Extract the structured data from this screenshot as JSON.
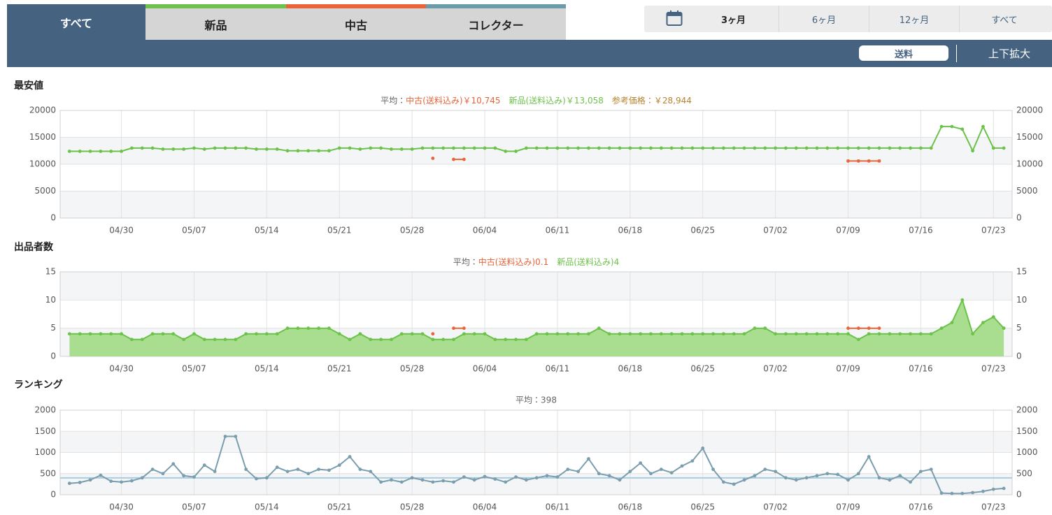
{
  "tabs": [
    "すべて",
    "新品",
    "中古",
    "コレクター"
  ],
  "ranges": [
    "3ヶ月",
    "6ヶ月",
    "12ヶ月",
    "すべて"
  ],
  "toolbar": {
    "shipping": "送料",
    "zoom": "上下拡大"
  },
  "chart_data": [
    {
      "type": "line",
      "title": "最安値",
      "subtitle_parts": [
        {
          "text": "平均：",
          "color": "#666666"
        },
        {
          "text": "中古(送料込み)￥10,745",
          "color": "#e8643a"
        },
        {
          "text": "新品(送料込み)￥13,058",
          "color": "#6cc24a"
        },
        {
          "text": "参考価格：￥28,944",
          "color": "#b5832e"
        }
      ],
      "xlim": [
        0.1,
        91.8
      ],
      "xticks": [
        {
          "value": 6,
          "label": "04/30"
        },
        {
          "value": 13,
          "label": "05/07"
        },
        {
          "value": 20,
          "label": "05/14"
        },
        {
          "value": 27,
          "label": "05/21"
        },
        {
          "value": 34,
          "label": "05/28"
        },
        {
          "value": 41,
          "label": "06/04"
        },
        {
          "value": 48,
          "label": "06/11"
        },
        {
          "value": 55,
          "label": "06/18"
        },
        {
          "value": 62,
          "label": "06/25"
        },
        {
          "value": 69,
          "label": "07/02"
        },
        {
          "value": 76,
          "label": "07/09"
        },
        {
          "value": 83,
          "label": "07/16"
        },
        {
          "value": 90,
          "label": "07/23"
        }
      ],
      "ylim": [
        0,
        20000
      ],
      "yticks": [
        0,
        5000,
        10000,
        15000,
        20000
      ],
      "grid": true,
      "x": [
        1,
        2,
        3,
        4,
        5,
        6,
        7,
        8,
        9,
        10,
        11,
        12,
        13,
        14,
        15,
        16,
        17,
        18,
        19,
        20,
        21,
        22,
        23,
        24,
        25,
        26,
        27,
        28,
        29,
        30,
        31,
        32,
        33,
        34,
        35,
        36,
        37,
        38,
        39,
        40,
        41,
        42,
        43,
        44,
        45,
        46,
        47,
        48,
        49,
        50,
        51,
        52,
        53,
        54,
        55,
        56,
        57,
        58,
        59,
        60,
        61,
        62,
        63,
        64,
        65,
        66,
        67,
        68,
        69,
        70,
        71,
        72,
        73,
        74,
        75,
        76,
        77,
        78,
        79,
        80,
        81,
        82,
        83,
        84,
        85,
        86,
        87,
        88,
        89,
        90,
        91
      ],
      "series": [
        {
          "name": "新品",
          "color": "#6cc24a",
          "values": [
            12400,
            12400,
            12400,
            12400,
            12400,
            12400,
            13000,
            13000,
            13000,
            12800,
            12800,
            12800,
            13000,
            12800,
            13000,
            13000,
            13000,
            13000,
            12800,
            12800,
            12800,
            12500,
            12500,
            12500,
            12500,
            12500,
            13000,
            13000,
            12800,
            13000,
            13000,
            12800,
            12800,
            12800,
            13000,
            13000,
            13000,
            13000,
            13000,
            13000,
            13000,
            13000,
            12400,
            12400,
            13000,
            13000,
            13000,
            13000,
            13000,
            13000,
            13000,
            13000,
            13000,
            13000,
            13000,
            13000,
            13000,
            13000,
            13000,
            13000,
            13000,
            13000,
            13000,
            13000,
            13000,
            13000,
            13000,
            13000,
            13000,
            13000,
            13000,
            13000,
            13000,
            13000,
            13000,
            13000,
            13000,
            13000,
            13000,
            13000,
            13000,
            13000,
            13000,
            13000,
            17000,
            17000,
            16500,
            12500,
            17000,
            13000,
            13000
          ]
        },
        {
          "name": "中古",
          "color": "#e8643a",
          "values": [
            null,
            null,
            null,
            null,
            null,
            null,
            null,
            null,
            null,
            null,
            null,
            null,
            null,
            null,
            null,
            null,
            null,
            null,
            null,
            null,
            null,
            null,
            null,
            null,
            null,
            null,
            null,
            null,
            null,
            null,
            null,
            null,
            null,
            null,
            null,
            11100,
            null,
            10900,
            10900,
            null,
            null,
            null,
            null,
            null,
            null,
            null,
            null,
            null,
            null,
            null,
            null,
            null,
            null,
            null,
            null,
            null,
            null,
            null,
            null,
            null,
            null,
            null,
            null,
            null,
            null,
            null,
            null,
            null,
            null,
            null,
            null,
            null,
            null,
            null,
            null,
            10600,
            10600,
            10600,
            10600,
            null,
            null,
            null,
            null,
            null,
            null,
            null,
            null,
            null,
            null,
            null,
            null
          ]
        }
      ]
    },
    {
      "type": "line",
      "title": "出品者数",
      "subtitle_parts": [
        {
          "text": "平均：",
          "color": "#666666"
        },
        {
          "text": "中古(送料込み)0.1",
          "color": "#e8643a"
        },
        {
          "text": "新品(送料込み)4",
          "color": "#6cc24a"
        }
      ],
      "xlim": [
        0.1,
        91.8
      ],
      "xticks": [
        {
          "value": 6,
          "label": "04/30"
        },
        {
          "value": 13,
          "label": "05/07"
        },
        {
          "value": 20,
          "label": "05/14"
        },
        {
          "value": 27,
          "label": "05/21"
        },
        {
          "value": 34,
          "label": "05/28"
        },
        {
          "value": 41,
          "label": "06/04"
        },
        {
          "value": 48,
          "label": "06/11"
        },
        {
          "value": 55,
          "label": "06/18"
        },
        {
          "value": 62,
          "label": "06/25"
        },
        {
          "value": 69,
          "label": "07/02"
        },
        {
          "value": 76,
          "label": "07/09"
        },
        {
          "value": 83,
          "label": "07/16"
        },
        {
          "value": 90,
          "label": "07/23"
        }
      ],
      "ylim": [
        0,
        15
      ],
      "yticks": [
        0,
        5,
        10,
        15
      ],
      "grid": true,
      "x": [
        1,
        2,
        3,
        4,
        5,
        6,
        7,
        8,
        9,
        10,
        11,
        12,
        13,
        14,
        15,
        16,
        17,
        18,
        19,
        20,
        21,
        22,
        23,
        24,
        25,
        26,
        27,
        28,
        29,
        30,
        31,
        32,
        33,
        34,
        35,
        36,
        37,
        38,
        39,
        40,
        41,
        42,
        43,
        44,
        45,
        46,
        47,
        48,
        49,
        50,
        51,
        52,
        53,
        54,
        55,
        56,
        57,
        58,
        59,
        60,
        61,
        62,
        63,
        64,
        65,
        66,
        67,
        68,
        69,
        70,
        71,
        72,
        73,
        74,
        75,
        76,
        77,
        78,
        79,
        80,
        81,
        82,
        83,
        84,
        85,
        86,
        87,
        88,
        89,
        90,
        91
      ],
      "series": [
        {
          "name": "新品",
          "color": "#6cc24a",
          "fill": "#a9dd8f",
          "values": [
            4,
            4,
            4,
            4,
            4,
            4,
            3,
            3,
            4,
            4,
            4,
            3,
            4,
            3,
            3,
            3,
            3,
            4,
            4,
            4,
            4,
            5,
            5,
            5,
            5,
            5,
            4,
            3,
            4,
            3,
            3,
            3,
            4,
            4,
            4,
            3,
            3,
            3,
            4,
            4,
            4,
            3,
            3,
            3,
            3,
            4,
            4,
            4,
            4,
            4,
            4,
            5,
            4,
            4,
            4,
            4,
            4,
            4,
            4,
            4,
            4,
            4,
            4,
            4,
            4,
            4,
            5,
            5,
            4,
            4,
            4,
            4,
            4,
            4,
            4,
            4,
            3,
            4,
            4,
            4,
            4,
            4,
            4,
            4,
            5,
            6,
            10,
            4,
            6,
            7,
            5
          ]
        },
        {
          "name": "中古",
          "color": "#e8643a",
          "values": [
            null,
            null,
            null,
            null,
            null,
            null,
            null,
            null,
            null,
            null,
            null,
            null,
            null,
            null,
            null,
            null,
            null,
            null,
            null,
            null,
            null,
            null,
            null,
            null,
            null,
            null,
            null,
            null,
            null,
            null,
            null,
            null,
            null,
            null,
            null,
            4,
            null,
            5,
            5,
            null,
            null,
            null,
            null,
            null,
            null,
            null,
            null,
            null,
            null,
            null,
            null,
            null,
            null,
            null,
            null,
            null,
            null,
            null,
            null,
            null,
            null,
            null,
            null,
            null,
            null,
            null,
            null,
            null,
            null,
            null,
            null,
            null,
            null,
            null,
            null,
            5,
            5,
            5,
            5,
            null,
            null,
            null,
            null,
            null,
            null,
            null,
            null,
            null,
            null,
            null,
            null
          ]
        }
      ]
    },
    {
      "type": "line",
      "title": "ランキング",
      "average": {
        "value": 398,
        "label": "平均：398",
        "color": "#a9cde0"
      },
      "xlim": [
        0.1,
        91.8
      ],
      "xticks": [
        {
          "value": 6,
          "label": "04/30"
        },
        {
          "value": 13,
          "label": "05/07"
        },
        {
          "value": 20,
          "label": "05/14"
        },
        {
          "value": 27,
          "label": "05/21"
        },
        {
          "value": 34,
          "label": "05/28"
        },
        {
          "value": 41,
          "label": "06/04"
        },
        {
          "value": 48,
          "label": "06/11"
        },
        {
          "value": 55,
          "label": "06/18"
        },
        {
          "value": 62,
          "label": "06/25"
        },
        {
          "value": 69,
          "label": "07/02"
        },
        {
          "value": 76,
          "label": "07/09"
        },
        {
          "value": 83,
          "label": "07/16"
        },
        {
          "value": 90,
          "label": "07/23"
        }
      ],
      "ylim": [
        0,
        2000
      ],
      "yticks": [
        0,
        500,
        1000,
        1500,
        2000
      ],
      "grid": true,
      "x": [
        1,
        2,
        3,
        4,
        5,
        6,
        7,
        8,
        9,
        10,
        11,
        12,
        13,
        14,
        15,
        16,
        17,
        18,
        19,
        20,
        21,
        22,
        23,
        24,
        25,
        26,
        27,
        28,
        29,
        30,
        31,
        32,
        33,
        34,
        35,
        36,
        37,
        38,
        39,
        40,
        41,
        42,
        43,
        44,
        45,
        46,
        47,
        48,
        49,
        50,
        51,
        52,
        53,
        54,
        55,
        56,
        57,
        58,
        59,
        60,
        61,
        62,
        63,
        64,
        65,
        66,
        67,
        68,
        69,
        70,
        71,
        72,
        73,
        74,
        75,
        76,
        77,
        78,
        79,
        80,
        81,
        82,
        83,
        84,
        85,
        86,
        87,
        88,
        89,
        90,
        91
      ],
      "series": [
        {
          "name": "ランキング",
          "color": "#7a9eae",
          "values": [
            270,
            290,
            350,
            460,
            320,
            300,
            330,
            400,
            600,
            500,
            730,
            450,
            420,
            700,
            550,
            1380,
            1380,
            600,
            380,
            400,
            650,
            550,
            600,
            500,
            600,
            580,
            700,
            900,
            600,
            550,
            300,
            350,
            300,
            400,
            350,
            300,
            330,
            300,
            420,
            350,
            430,
            370,
            300,
            420,
            350,
            400,
            450,
            420,
            600,
            550,
            850,
            500,
            450,
            350,
            550,
            750,
            500,
            600,
            520,
            680,
            800,
            1100,
            600,
            300,
            250,
            350,
            450,
            600,
            550,
            400,
            350,
            400,
            450,
            500,
            480,
            350,
            500,
            900,
            400,
            350,
            450,
            300,
            550,
            600,
            40,
            30,
            30,
            50,
            80,
            130,
            150
          ]
        }
      ]
    }
  ]
}
